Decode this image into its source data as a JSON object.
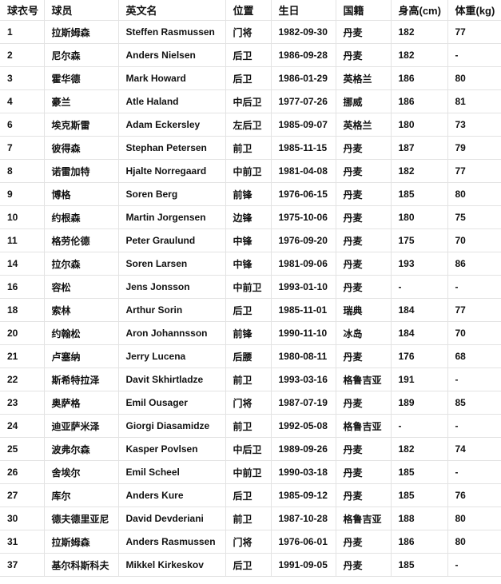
{
  "headers": [
    "球衣号",
    "球员",
    "英文名",
    "位置",
    "生日",
    "国籍",
    "身高(cm)",
    "体重(kg)"
  ],
  "rows": [
    [
      "1",
      "拉斯姆森",
      "Steffen Rasmussen",
      "门将",
      "1982-09-30",
      "丹麦",
      "182",
      "77"
    ],
    [
      "2",
      "尼尔森",
      "Anders Nielsen",
      "后卫",
      "1986-09-28",
      "丹麦",
      "182",
      "-"
    ],
    [
      "3",
      "霍华德",
      "Mark Howard",
      "后卫",
      "1986-01-29",
      "英格兰",
      "186",
      "80"
    ],
    [
      "4",
      "豪兰",
      "Atle Haland",
      "中后卫",
      "1977-07-26",
      "挪威",
      "186",
      "81"
    ],
    [
      "6",
      "埃克斯雷",
      "Adam Eckersley",
      "左后卫",
      "1985-09-07",
      "英格兰",
      "180",
      "73"
    ],
    [
      "7",
      "彼得森",
      "Stephan Petersen",
      "前卫",
      "1985-11-15",
      "丹麦",
      "187",
      "79"
    ],
    [
      "8",
      "诺雷加特",
      "Hjalte Norregaard",
      "中前卫",
      "1981-04-08",
      "丹麦",
      "182",
      "77"
    ],
    [
      "9",
      "博格",
      "Soren Berg",
      "前锋",
      "1976-06-15",
      "丹麦",
      "185",
      "80"
    ],
    [
      "10",
      "约根森",
      "Martin Jorgensen",
      "边锋",
      "1975-10-06",
      "丹麦",
      "180",
      "75"
    ],
    [
      "11",
      "格劳伦德",
      "Peter Graulund",
      "中锋",
      "1976-09-20",
      "丹麦",
      "175",
      "70"
    ],
    [
      "14",
      "拉尔森",
      "Soren Larsen",
      "中锋",
      "1981-09-06",
      "丹麦",
      "193",
      "86"
    ],
    [
      "16",
      "容松",
      "Jens Jonsson",
      "中前卫",
      "1993-01-10",
      "丹麦",
      "-",
      "-"
    ],
    [
      "18",
      "索林",
      "Arthur Sorin",
      "后卫",
      "1985-11-01",
      "瑞典",
      "184",
      "77"
    ],
    [
      "20",
      "约翰松",
      "Aron Johannsson",
      "前锋",
      "1990-11-10",
      "冰岛",
      "184",
      "70"
    ],
    [
      "21",
      "卢塞纳",
      "Jerry Lucena",
      "后腰",
      "1980-08-11",
      "丹麦",
      "176",
      "68"
    ],
    [
      "22",
      "斯希特拉泽",
      "Davit Skhirtladze",
      "前卫",
      "1993-03-16",
      "格鲁吉亚",
      "191",
      "-"
    ],
    [
      "23",
      "奥萨格",
      "Emil Ousager",
      "门将",
      "1987-07-19",
      "丹麦",
      "189",
      "85"
    ],
    [
      "24",
      "迪亚萨米泽",
      "Giorgi Diasamidze",
      "前卫",
      "1992-05-08",
      "格鲁吉亚",
      "-",
      "-"
    ],
    [
      "25",
      "波弗尔森",
      "Kasper Povlsen",
      "中后卫",
      "1989-09-26",
      "丹麦",
      "182",
      "74"
    ],
    [
      "26",
      "舍埃尔",
      "Emil Scheel",
      "中前卫",
      "1990-03-18",
      "丹麦",
      "185",
      "-"
    ],
    [
      "27",
      "库尔",
      "Anders Kure",
      "后卫",
      "1985-09-12",
      "丹麦",
      "185",
      "76"
    ],
    [
      "30",
      "德夫德里亚尼",
      "David Devderiani",
      "前卫",
      "1987-10-28",
      "格鲁吉亚",
      "188",
      "80"
    ],
    [
      "31",
      "拉斯姆森",
      "Anders Rasmussen",
      "门将",
      "1976-06-01",
      "丹麦",
      "186",
      "80"
    ],
    [
      "37",
      "基尔科斯科夫",
      "Mikkel Kirkeskov",
      "后卫",
      "1991-09-05",
      "丹麦",
      "185",
      "-"
    ]
  ]
}
